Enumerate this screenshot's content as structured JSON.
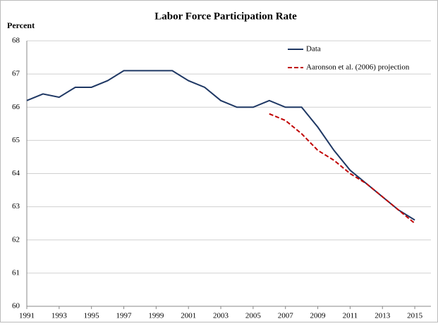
{
  "chart_data": {
    "type": "line",
    "title": "Labor Force Participation Rate",
    "y_label": "Percent",
    "x": [
      1991,
      1992,
      1993,
      1994,
      1995,
      1996,
      1997,
      1998,
      1999,
      2000,
      2001,
      2002,
      2003,
      2004,
      2005,
      2006,
      2007,
      2008,
      2009,
      2010,
      2011,
      2012,
      2013,
      2014,
      2015
    ],
    "series": [
      {
        "name": "Data",
        "color": "#1f3864",
        "dashed": false,
        "values": [
          66.2,
          66.4,
          66.3,
          66.6,
          66.6,
          66.8,
          67.1,
          67.1,
          67.1,
          67.1,
          66.8,
          66.6,
          66.2,
          66.0,
          66.0,
          66.2,
          66.0,
          66.0,
          65.4,
          64.7,
          64.1,
          63.7,
          63.3,
          62.9,
          62.6
        ]
      },
      {
        "name": "Aaronson et al. (2006) projection",
        "color": "#c00000",
        "dashed": true,
        "values": [
          null,
          null,
          null,
          null,
          null,
          null,
          null,
          null,
          null,
          null,
          null,
          null,
          null,
          null,
          null,
          65.8,
          65.6,
          65.2,
          64.7,
          64.4,
          64.0,
          63.7,
          63.3,
          62.9,
          62.5
        ]
      }
    ],
    "xlim": [
      1991,
      2016
    ],
    "xticks": [
      1991,
      1993,
      1995,
      1997,
      1999,
      2001,
      2003,
      2005,
      2007,
      2009,
      2011,
      2013,
      2015
    ],
    "ylim": [
      60,
      68
    ],
    "yticks": [
      60,
      61,
      62,
      63,
      64,
      65,
      66,
      67,
      68
    ],
    "grid": true,
    "legend": "top-right"
  }
}
